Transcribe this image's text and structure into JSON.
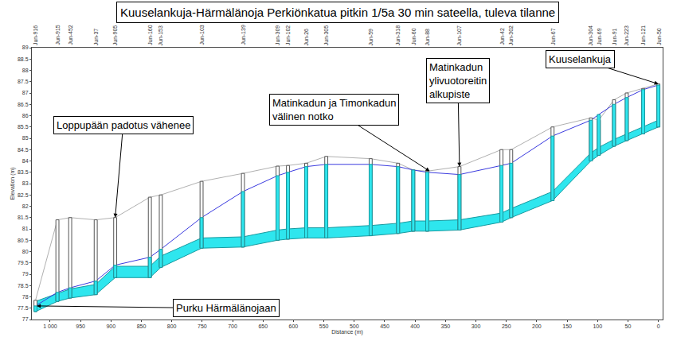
{
  "chart_data": {
    "type": "profile",
    "title": "Kuuselankuja-Härmälänoja Perkiönkatua pitkin 1/5a 30 min sateella, tuleva tilanne",
    "x_label": "Distance (m)",
    "y_label": "Elevation (m)",
    "xlim": [
      1030,
      -7
    ],
    "xticks": [
      {
        "value": 1000,
        "label": "1 000"
      },
      950,
      900,
      850,
      800,
      750,
      700,
      650,
      600,
      550,
      500,
      450,
      400,
      350,
      300,
      250,
      200,
      150,
      100,
      50,
      0
    ],
    "ylim": [
      77,
      89
    ],
    "yticks": [
      77,
      77.5,
      78,
      78.5,
      79,
      79.5,
      80,
      80.5,
      81,
      81.5,
      82,
      82.5,
      83,
      83.5,
      84,
      84.5,
      85,
      85.5,
      86,
      86.5,
      87,
      87.5,
      88,
      88.5,
      89
    ],
    "grid": false,
    "nodes": [
      "Jun-916",
      "Jun-915",
      "Jun-452",
      "Jun-37",
      "Jun-905",
      "Jun-160",
      "Jun-153",
      "Jun-103",
      "Jun-139",
      "Jun-309",
      "Jun-102",
      "Jun-26",
      "Jun-305",
      "Jun-59",
      "Jun-318",
      "Jun-60",
      "Jun-88",
      "Jun-107",
      "Jun-42",
      "Jun-302",
      "Jun-67",
      "Jun-304",
      "Jun-69",
      "Jun-91",
      "Jun-223",
      "Jun-121",
      "Jun-50"
    ],
    "x": [
      1024,
      988,
      967,
      925,
      893,
      836,
      818,
      751,
      683,
      626,
      609,
      579,
      546,
      473,
      428,
      403,
      380,
      327,
      258,
      242,
      174,
      111,
      98,
      73,
      52,
      25,
      0
    ],
    "ground": [
      77.85,
      81.4,
      81.5,
      81.4,
      81.5,
      82.4,
      82.5,
      83.1,
      83.45,
      83.77,
      83.8,
      83.9,
      84.2,
      84.1,
      83.9,
      83.6,
      83.55,
      83.75,
      84.5,
      84.5,
      85.5,
      85.9,
      85.8,
      86.7,
      87.0,
      87.2,
      87.4
    ],
    "water_level": [
      77.6,
      78.2,
      78.4,
      78.7,
      79.4,
      79.75,
      80.1,
      81.5,
      82.65,
      83.35,
      83.5,
      83.75,
      83.85,
      83.85,
      83.75,
      83.6,
      83.5,
      83.4,
      83.8,
      83.9,
      85.1,
      85.8,
      86.05,
      86.5,
      86.8,
      87.15,
      87.35
    ],
    "invert": [
      77.35,
      77.8,
      77.95,
      78.1,
      78.85,
      78.85,
      79.3,
      80.15,
      80.2,
      80.5,
      80.55,
      80.6,
      80.6,
      80.7,
      80.8,
      80.9,
      80.9,
      80.95,
      81.3,
      81.5,
      82.25,
      84.0,
      84.25,
      84.65,
      84.9,
      85.2,
      85.5
    ],
    "crown": [
      77.8,
      78.15,
      78.35,
      78.55,
      79.35,
      79.35,
      79.8,
      80.6,
      80.65,
      80.95,
      81.0,
      81.05,
      81.05,
      81.15,
      81.25,
      81.35,
      81.35,
      81.4,
      81.7,
      81.9,
      82.65,
      84.35,
      84.6,
      84.95,
      85.2,
      85.5,
      85.8
    ],
    "annotations": [
      {
        "text": [
          "Loppupään padotus vähenee"
        ],
        "x": 893,
        "y": 81.5
      },
      {
        "text": [
          "Purku Härmälänojaan"
        ],
        "x": 1022,
        "y": 77.6
      },
      {
        "text": [
          "Matinkadun ja Timonkadun",
          "välinen notko"
        ],
        "x": 376,
        "y": 83.55
      },
      {
        "text": [
          "Matinkadun",
          "ylivuotoreitin",
          "alkupiste"
        ],
        "x": 327,
        "y": 83.75
      },
      {
        "text": [
          "Kuuselankuja"
        ],
        "x": 0,
        "y": 87.4
      }
    ]
  }
}
